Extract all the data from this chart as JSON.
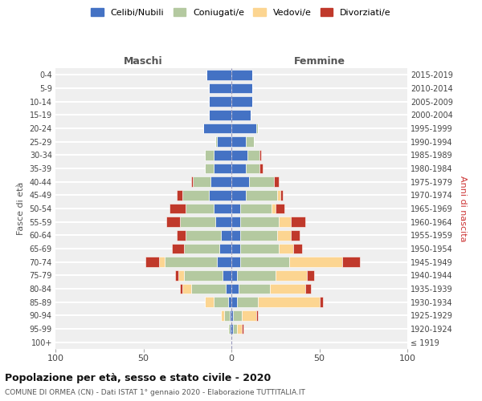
{
  "age_groups": [
    "100+",
    "95-99",
    "90-94",
    "85-89",
    "80-84",
    "75-79",
    "70-74",
    "65-69",
    "60-64",
    "55-59",
    "50-54",
    "45-49",
    "40-44",
    "35-39",
    "30-34",
    "25-29",
    "20-24",
    "15-19",
    "10-14",
    "5-9",
    "0-4"
  ],
  "birth_years": [
    "≤ 1919",
    "1920-1924",
    "1925-1929",
    "1930-1934",
    "1935-1939",
    "1940-1944",
    "1945-1949",
    "1950-1954",
    "1955-1959",
    "1960-1964",
    "1965-1969",
    "1970-1974",
    "1975-1979",
    "1980-1984",
    "1985-1989",
    "1990-1994",
    "1995-1999",
    "2000-2004",
    "2005-2009",
    "2010-2014",
    "2015-2019"
  ],
  "colors": {
    "celibe": "#4472C4",
    "coniugato": "#b4c9a0",
    "vedovo": "#fcd591",
    "divorziato": "#c0392b"
  },
  "maschi": {
    "celibe": [
      0,
      1,
      1,
      2,
      3,
      5,
      8,
      7,
      6,
      9,
      10,
      13,
      12,
      10,
      10,
      8,
      16,
      13,
      13,
      13,
      14
    ],
    "coniugato": [
      0,
      1,
      3,
      8,
      20,
      22,
      30,
      20,
      20,
      20,
      16,
      15,
      10,
      5,
      5,
      1,
      0,
      0,
      0,
      0,
      0
    ],
    "vedovo": [
      0,
      0,
      2,
      5,
      5,
      3,
      3,
      0,
      0,
      0,
      0,
      0,
      0,
      0,
      0,
      0,
      0,
      0,
      0,
      0,
      0
    ],
    "divorziato": [
      0,
      0,
      0,
      0,
      1,
      2,
      8,
      7,
      5,
      8,
      9,
      3,
      1,
      0,
      0,
      0,
      0,
      0,
      0,
      0,
      0
    ]
  },
  "femmine": {
    "celibe": [
      0,
      1,
      1,
      3,
      4,
      3,
      5,
      5,
      5,
      5,
      5,
      8,
      10,
      8,
      9,
      8,
      14,
      11,
      12,
      12,
      12
    ],
    "coniugato": [
      0,
      2,
      5,
      12,
      18,
      22,
      28,
      22,
      21,
      22,
      18,
      18,
      14,
      8,
      7,
      5,
      1,
      0,
      0,
      0,
      0
    ],
    "vedovo": [
      0,
      3,
      8,
      35,
      20,
      18,
      30,
      8,
      8,
      7,
      2,
      2,
      0,
      0,
      0,
      0,
      0,
      0,
      0,
      0,
      0
    ],
    "divorziato": [
      0,
      1,
      1,
      2,
      3,
      4,
      10,
      5,
      5,
      8,
      5,
      1,
      3,
      2,
      1,
      0,
      0,
      0,
      0,
      0,
      0
    ]
  },
  "xlim": 100,
  "title": "Popolazione per età, sesso e stato civile - 2020",
  "subtitle": "COMUNE DI ORMEA (CN) - Dati ISTAT 1° gennaio 2020 - Elaborazione TUTTITALIA.IT",
  "xlabel_left": "Maschi",
  "xlabel_right": "Femmine",
  "ylabel": "Fasce di età",
  "ylabel_right": "Anni di nascita",
  "bg_color": "#efefef",
  "grid_color": "#ffffff",
  "legend_labels": [
    "Celibi/Nubili",
    "Coniugati/e",
    "Vedovi/e",
    "Divorziati/e"
  ]
}
